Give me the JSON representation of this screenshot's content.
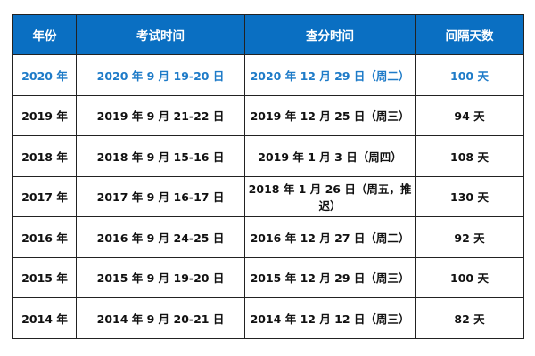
{
  "table": {
    "headers": [
      "年份",
      "考试时间",
      "查分时间",
      "间隔天数"
    ],
    "rows": [
      [
        "2020 年",
        "2020 年 9 月 19-20 日",
        "2020 年 12 月 29 日（周二）",
        "100 天"
      ],
      [
        "2019 年",
        "2019 年 9 月 21-22 日",
        "2019 年 12 月 25 日（周三）",
        "94 天"
      ],
      [
        "2018 年",
        "2018 年 9 月 15-16 日",
        "2019 年 1 月 3 日（周四）",
        "108 天"
      ],
      [
        "2017 年",
        "2017 年 9 月 16-17 日",
        "2018 年 1 月 26 日（周五，推迟）",
        "130 天"
      ],
      [
        "2016 年",
        "2016 年 9 月 24-25 日",
        "2016 年 12 月 27 日（周二）",
        "92 天"
      ],
      [
        "2015 年",
        "2015 年 9 月 19-20 日",
        "2015 年 12 月 29 日（周三）",
        "100 天"
      ],
      [
        "2014 年",
        "2014 年 9 月 20-21 日",
        "2014 年 12 月 12 日（周三）",
        "82 天"
      ]
    ]
  },
  "colors": {
    "header_bg": "#0a6fc2",
    "header_text": "#ffffff",
    "highlight_row_text": "#1e7bc8",
    "body_text": "#111111",
    "border": "#222222"
  }
}
